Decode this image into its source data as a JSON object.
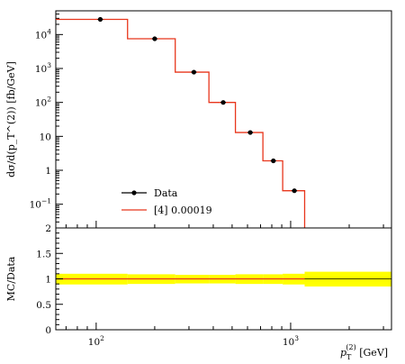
{
  "chart_data": [
    {
      "type": "line",
      "panel": "main",
      "ylabel": "dσ/d(p_T^(2)) [fb/GeV]",
      "yscale": "log",
      "xscale": "log",
      "ylim": [
        0.02,
        50000
      ],
      "xlim": [
        62,
        3300
      ],
      "ytick_labels": [
        {
          "base": "10",
          "exp": "4",
          "value": 10000
        },
        {
          "base": "10",
          "exp": "3",
          "value": 1000
        },
        {
          "base": "10",
          "exp": "2",
          "value": 100
        },
        {
          "base": "10",
          "exp": "",
          "value": 10
        },
        {
          "base": "1",
          "exp": "",
          "value": 1
        },
        {
          "base": "10",
          "exp": "−1",
          "value": 0.1
        }
      ],
      "bin_edges": [
        62,
        145,
        255,
        380,
        520,
        720,
        910,
        1180
      ],
      "series": [
        {
          "name": "Data",
          "kind": "points",
          "color": "#000000",
          "x": [
            105,
            200,
            318,
            450,
            620,
            815,
            1045
          ],
          "y": [
            28000,
            7500,
            780,
            100,
            13,
            1.9,
            0.25
          ]
        },
        {
          "name": "[4] 0.00019",
          "kind": "step",
          "color": "#e8361c",
          "y": [
            28000,
            7500,
            780,
            100,
            13,
            1.9,
            0.25
          ]
        }
      ],
      "legend": {
        "placement": "lower-left",
        "entries": [
          {
            "label": "Data"
          },
          {
            "label": "[4] 0.00019"
          }
        ]
      }
    },
    {
      "type": "area",
      "panel": "ratio",
      "ylabel": "MC/Data",
      "xlabel_main": "p",
      "xlabel_sub": "T",
      "xlabel_sup": "(2)",
      "xlabel_unit": "[GeV]",
      "ylim": [
        0,
        2
      ],
      "yticks": [
        "0",
        "0.5",
        "1",
        "1.5",
        "2"
      ],
      "xtick_labels": [
        {
          "base": "10",
          "exp": "2",
          "value": 100
        },
        {
          "base": "10",
          "exp": "3",
          "value": 1000
        }
      ],
      "band_color": "#ffff00",
      "line_color": "#e8361c",
      "band": [
        {
          "x0": 62,
          "x1": 145,
          "low": 0.89,
          "high": 1.1
        },
        {
          "x0": 145,
          "x1": 255,
          "low": 0.9,
          "high": 1.09
        },
        {
          "x0": 255,
          "x1": 380,
          "low": 0.91,
          "high": 1.08
        },
        {
          "x0": 380,
          "x1": 520,
          "low": 0.91,
          "high": 1.08
        },
        {
          "x0": 520,
          "x1": 720,
          "low": 0.9,
          "high": 1.09
        },
        {
          "x0": 720,
          "x1": 910,
          "low": 0.9,
          "high": 1.09
        },
        {
          "x0": 910,
          "x1": 1180,
          "low": 0.89,
          "high": 1.1
        },
        {
          "x0": 1180,
          "x1": 3300,
          "low": 0.85,
          "high": 1.14
        }
      ],
      "ratio_values": [
        1,
        1,
        1,
        1,
        1,
        1,
        1
      ]
    }
  ]
}
